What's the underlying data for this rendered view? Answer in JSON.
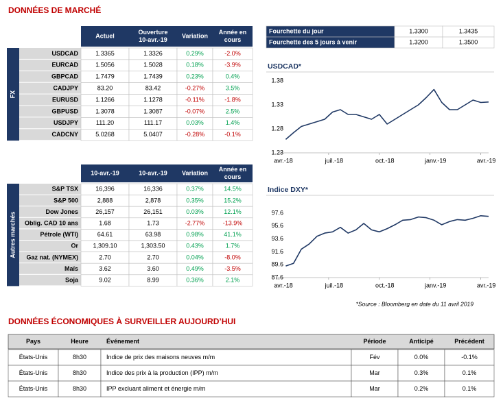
{
  "header": {
    "title": "DONNÉES DE MARCHÉ"
  },
  "fx_table": {
    "side_label": "FX",
    "headers": [
      [
        "Actuel"
      ],
      [
        "Ouverture",
        "10-avr.-19"
      ],
      [
        "Variation"
      ],
      [
        "Année en",
        "cours"
      ]
    ],
    "rows": [
      [
        "USDCAD",
        "1.3365",
        "1.3326",
        "0.29%",
        "-2.0%"
      ],
      [
        "EURCAD",
        "1.5056",
        "1.5028",
        "0.18%",
        "-3.9%"
      ],
      [
        "GBPCAD",
        "1.7479",
        "1.7439",
        "0.23%",
        "0.4%"
      ],
      [
        "CADJPY",
        "83.20",
        "83.42",
        "-0.27%",
        "3.5%"
      ],
      [
        "EURUSD",
        "1.1266",
        "1.1278",
        "-0.11%",
        "-1.8%"
      ],
      [
        "GBPUSD",
        "1.3078",
        "1.3087",
        "-0.07%",
        "2.5%"
      ],
      [
        "USDJPY",
        "111.20",
        "111.17",
        "0.03%",
        "1.4%"
      ],
      [
        "CADCNY",
        "5.0268",
        "5.0407",
        "-0.28%",
        "-0.1%"
      ]
    ]
  },
  "range_table": {
    "rows": [
      [
        "Fourchette du jour",
        "1.3300",
        "1.3435"
      ],
      [
        "Fourchette des 5 jours à venir",
        "1.3200",
        "1.3500"
      ]
    ]
  },
  "usdcad_chart": {
    "type": "line",
    "title": "USDCAD*",
    "color": "#1f3864",
    "x": [
      2,
      4,
      6,
      8,
      10,
      12,
      14,
      16,
      18,
      20,
      22,
      24,
      26,
      28,
      30,
      32,
      34,
      36,
      38,
      40,
      42,
      44,
      46,
      48,
      50,
      52,
      54
    ],
    "values": [
      1.258,
      1.272,
      1.285,
      1.29,
      1.295,
      1.3,
      1.315,
      1.32,
      1.31,
      1.31,
      1.305,
      1.3,
      1.31,
      1.29,
      1.3,
      1.31,
      1.32,
      1.33,
      1.345,
      1.362,
      1.335,
      1.32,
      1.32,
      1.33,
      1.34,
      1.335,
      1.336
    ],
    "xlim": [
      0,
      54
    ],
    "xticks": [
      {
        "value": 0,
        "label": "avr.-18"
      },
      {
        "value": 13,
        "label": "juil.-18"
      },
      {
        "value": 26,
        "label": "oct.-18"
      },
      {
        "value": 39,
        "label": "janv.-19"
      },
      {
        "value": 52,
        "label": "avr.-19"
      }
    ],
    "ylim": [
      1.23,
      1.39
    ],
    "yticks": [
      1.23,
      1.28,
      1.33,
      1.38
    ]
  },
  "market_table": {
    "side_label": "Autres marchés",
    "headers": [
      [
        "10-avr.-19"
      ],
      [
        "10-avr.-19"
      ],
      [
        "Variation"
      ],
      [
        "Année en",
        "cours"
      ]
    ],
    "rows": [
      [
        "S&P TSX",
        "16,396",
        "16,336",
        "0.37%",
        "14.5%"
      ],
      [
        "S&P 500",
        "2,888",
        "2,878",
        "0.35%",
        "15.2%"
      ],
      [
        "Dow Jones",
        "26,157",
        "26,151",
        "0.03%",
        "12.1%"
      ],
      [
        "Oblig. CAD 10 ans",
        "1.68",
        "1.73",
        "-2.77%",
        "-13.9%"
      ],
      [
        "Pétrole (WTI)",
        "64.61",
        "63.98",
        "0.98%",
        "41.1%"
      ],
      [
        "Or",
        "1,309.10",
        "1,303.50",
        "0.43%",
        "1.7%"
      ],
      [
        "Gaz nat. (NYMEX)",
        "2.70",
        "2.70",
        "0.04%",
        "-8.0%"
      ],
      [
        "Maïs",
        "3.62",
        "3.60",
        "0.49%",
        "-3.5%"
      ],
      [
        "Soja",
        "9.02",
        "8.99",
        "0.36%",
        "2.1%"
      ]
    ]
  },
  "dxy_chart": {
    "type": "line",
    "title": "Indice DXY*",
    "color": "#1f3864",
    "x": [
      2,
      4,
      6,
      8,
      10,
      12,
      14,
      16,
      18,
      20,
      22,
      24,
      26,
      28,
      30,
      32,
      34,
      36,
      38,
      40,
      42,
      44,
      46,
      48,
      50,
      52,
      54
    ],
    "values": [
      89.4,
      89.8,
      92,
      92.8,
      94,
      94.5,
      94.7,
      95.4,
      94.5,
      95,
      96,
      95,
      94.7,
      95.2,
      95.8,
      96.5,
      96.6,
      97,
      96.9,
      96.5,
      95.8,
      96.3,
      96.6,
      96.5,
      96.8,
      97.2,
      97.1
    ],
    "xlim": [
      0,
      54
    ],
    "xticks": [
      {
        "value": 0,
        "label": "avr.-18"
      },
      {
        "value": 13,
        "label": "juil.-18"
      },
      {
        "value": 26,
        "label": "oct.-18"
      },
      {
        "value": 39,
        "label": "janv.-19"
      },
      {
        "value": 52,
        "label": "avr.-19"
      }
    ],
    "ylim": [
      87.6,
      98.6
    ],
    "yticks": [
      87.6,
      89.6,
      91.6,
      93.6,
      95.6,
      97.6
    ]
  },
  "source": "*Source : Bloomberg en date du  11 avril 2019",
  "econ": {
    "title": "DONNÉES ÉCONOMIQUES À SURVEILLER AUJOURD’HUI",
    "headers": [
      "Pays",
      "Heure",
      "Événement",
      "Période",
      "Anticipé",
      "Précédent"
    ],
    "rows": [
      [
        "États-Unis",
        "8h30",
        "Indice de prix des maisons neuves m/m",
        "Fév",
        "0.0%",
        "-0.1%"
      ],
      [
        "États-Unis",
        "8h30",
        "Indice des prix à la production (IPP) m/m",
        "Mar",
        "0.3%",
        "0.1%"
      ],
      [
        "États-Unis",
        "8h30",
        "IPP excluant aliment et énergie m/m",
        "Mar",
        "0.2%",
        "0.1%"
      ]
    ]
  }
}
